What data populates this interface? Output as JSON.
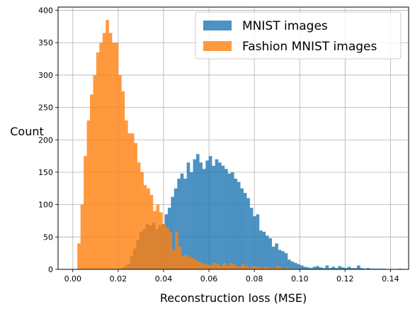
{
  "chart_data": {
    "type": "bar",
    "title": "",
    "xlabel": "Reconstruction loss (MSE)",
    "ylabel": "Count",
    "xlim": [
      -0.0065,
      0.148
    ],
    "ylim": [
      0,
      405
    ],
    "grid": true,
    "legend_position": "top-right",
    "x_ticks": [
      0.0,
      0.02,
      0.04,
      0.06,
      0.08,
      0.1,
      0.12,
      0.14
    ],
    "y_ticks": [
      0,
      50,
      100,
      150,
      200,
      250,
      300,
      350,
      400
    ],
    "x_tick_labels": [
      "0.00",
      "0.02",
      "0.04",
      "0.06",
      "0.08",
      "0.10",
      "0.12",
      "0.14"
    ],
    "y_tick_labels": [
      "0",
      "50",
      "100",
      "150",
      "200",
      "250",
      "300",
      "350",
      "400"
    ],
    "bin_width": 0.00139,
    "series": [
      {
        "name": "MNIST images",
        "color": "#1f77b4",
        "opacity": 0.8,
        "bin_start": 0.021,
        "counts": [
          2,
          5,
          8,
          20,
          32,
          45,
          58,
          62,
          70,
          68,
          72,
          62,
          68,
          70,
          85,
          95,
          112,
          125,
          140,
          148,
          140,
          165,
          150,
          170,
          178,
          165,
          155,
          168,
          175,
          160,
          170,
          165,
          160,
          155,
          148,
          150,
          140,
          135,
          125,
          118,
          110,
          95,
          82,
          85,
          60,
          58,
          52,
          48,
          35,
          40,
          30,
          28,
          25,
          15,
          12,
          10,
          8,
          6,
          4,
          3,
          2,
          4,
          5,
          3,
          2,
          6,
          2,
          4,
          2,
          5,
          3,
          2,
          4,
          2,
          2,
          6,
          2,
          1,
          2,
          1,
          1,
          1,
          1,
          1,
          0,
          0,
          0,
          0,
          1
        ]
      },
      {
        "name": "Fashion MNIST images",
        "color": "#ff7f0e",
        "opacity": 0.8,
        "bin_start": 0.002,
        "counts": [
          40,
          100,
          175,
          230,
          270,
          300,
          335,
          350,
          365,
          385,
          365,
          350,
          350,
          300,
          275,
          230,
          210,
          210,
          195,
          165,
          150,
          130,
          125,
          115,
          90,
          100,
          88,
          70,
          65,
          58,
          30,
          58,
          35,
          20,
          22,
          20,
          18,
          15,
          12,
          10,
          8,
          7,
          6,
          10,
          8,
          5,
          10,
          6,
          10,
          8,
          5,
          4,
          8,
          5,
          3,
          4,
          5,
          3,
          2,
          4,
          3,
          2,
          2,
          5,
          3,
          1,
          2,
          1,
          1,
          1
        ]
      }
    ]
  }
}
